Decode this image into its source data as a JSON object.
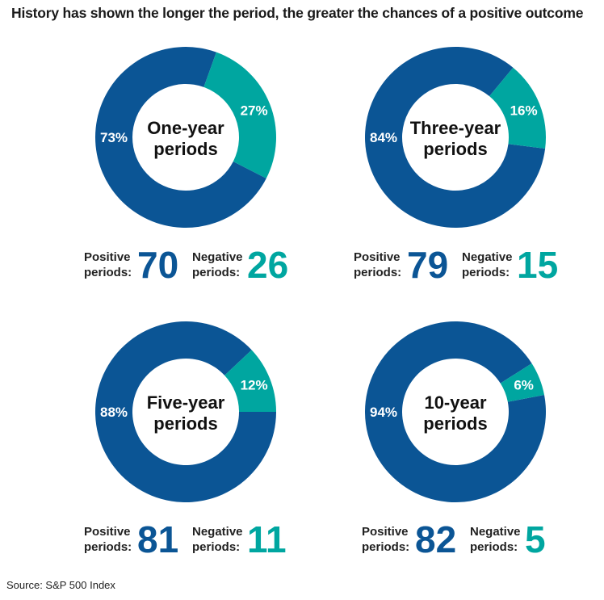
{
  "title": "History has shown the longer the period, the greater the chances of a positive outcome",
  "source": "Source: S&P 500 Index",
  "colors": {
    "positive": "#0b5595",
    "negative": "#00a6a0",
    "text": "#222222"
  },
  "chart_data": [
    {
      "type": "pie",
      "title_lines": [
        "One-year",
        "periods"
      ],
      "categories": [
        "Positive",
        "Negative"
      ],
      "values": [
        73,
        27
      ],
      "labels": [
        "73%",
        "27%"
      ],
      "positive_label_lines": [
        "Positive",
        "periods:"
      ],
      "positive_count": 70,
      "negative_label_lines": [
        "Negative",
        "periods:"
      ],
      "negative_count": 26
    },
    {
      "type": "pie",
      "title_lines": [
        "Three-year",
        "periods"
      ],
      "categories": [
        "Positive",
        "Negative"
      ],
      "values": [
        84,
        16
      ],
      "labels": [
        "84%",
        "16%"
      ],
      "positive_label_lines": [
        "Positive",
        "periods:"
      ],
      "positive_count": 79,
      "negative_label_lines": [
        "Negative",
        "periods:"
      ],
      "negative_count": 15
    },
    {
      "type": "pie",
      "title_lines": [
        "Five-year",
        "periods"
      ],
      "categories": [
        "Positive",
        "Negative"
      ],
      "values": [
        88,
        12
      ],
      "labels": [
        "88%",
        "12%"
      ],
      "positive_label_lines": [
        "Positive",
        "periods:"
      ],
      "positive_count": 81,
      "negative_label_lines": [
        "Negative",
        "periods:"
      ],
      "negative_count": 11
    },
    {
      "type": "pie",
      "title_lines": [
        "10-year",
        "periods"
      ],
      "categories": [
        "Positive",
        "Negative"
      ],
      "values": [
        94,
        6
      ],
      "labels": [
        "94%",
        "6%"
      ],
      "positive_label_lines": [
        "Positive",
        "periods:"
      ],
      "positive_count": 82,
      "negative_label_lines": [
        "Negative",
        "periods:"
      ],
      "negative_count": 5
    }
  ]
}
